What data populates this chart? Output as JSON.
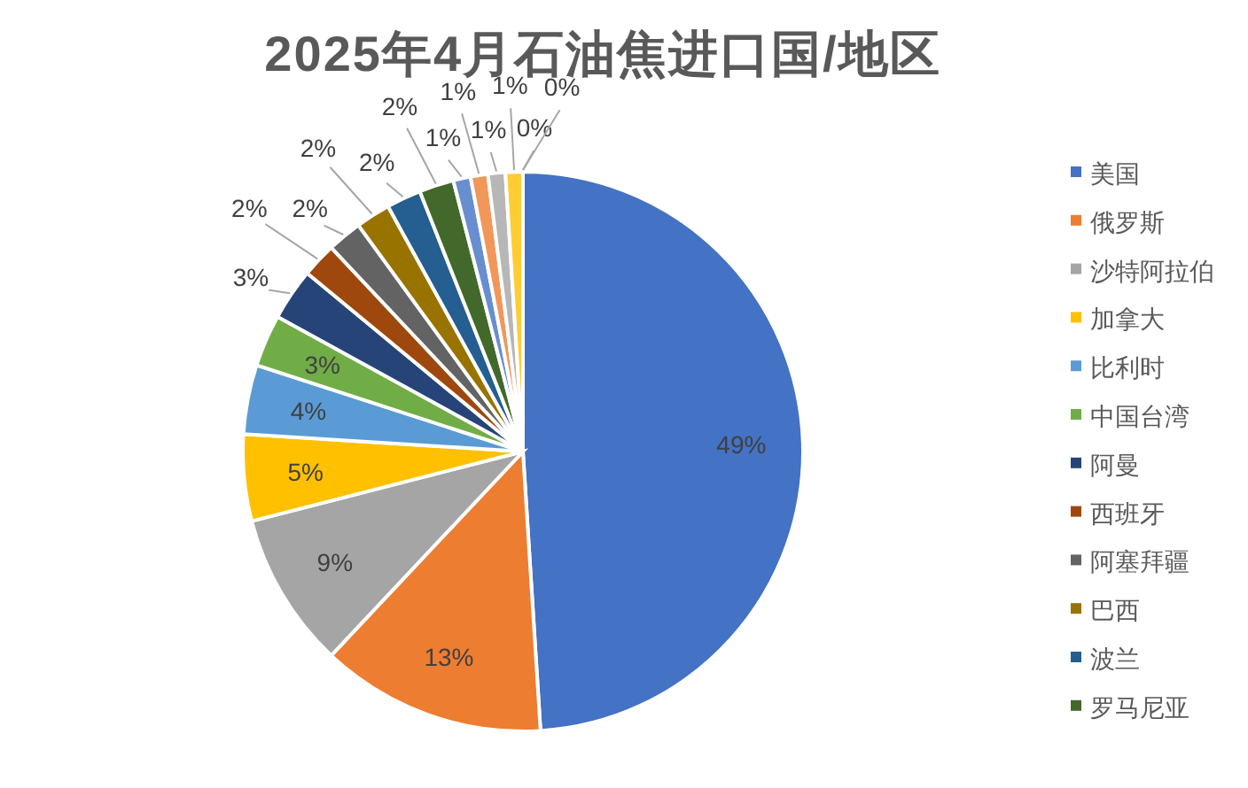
{
  "chart_data": {
    "type": "pie",
    "title": "2025年4月石油焦进口国/地区",
    "categories": [
      "美国",
      "俄罗斯",
      "沙特阿拉伯",
      "加拿大",
      "比利时",
      "中国台湾",
      "阿曼",
      "西班牙",
      "阿塞拜疆",
      "巴西",
      "波兰",
      "罗马尼亚",
      null,
      null,
      null,
      null,
      null,
      null
    ],
    "values": [
      49,
      13,
      9,
      5,
      4,
      3,
      3,
      2,
      2,
      2,
      2,
      2,
      1,
      1,
      1,
      1,
      0,
      0
    ],
    "colors": [
      "#4472c4",
      "#ed7d31",
      "#a5a5a5",
      "#ffc000",
      "#5b9bd5",
      "#70ad47",
      "#264478",
      "#9e480e",
      "#636363",
      "#997300",
      "#255e91",
      "#43682b",
      "#698ed0",
      "#f1975a",
      "#b7b7b7",
      "#ffcd33",
      "#7cafdd",
      "#8cc168"
    ],
    "value_labels": [
      "49%",
      "13%",
      "9%",
      "5%",
      "4%",
      "3%",
      "3%",
      "2%",
      "2%",
      "2%",
      "2%",
      "2%",
      "1%",
      "1%",
      "1%",
      "1%",
      "0%",
      "0%"
    ],
    "legend": "right"
  }
}
